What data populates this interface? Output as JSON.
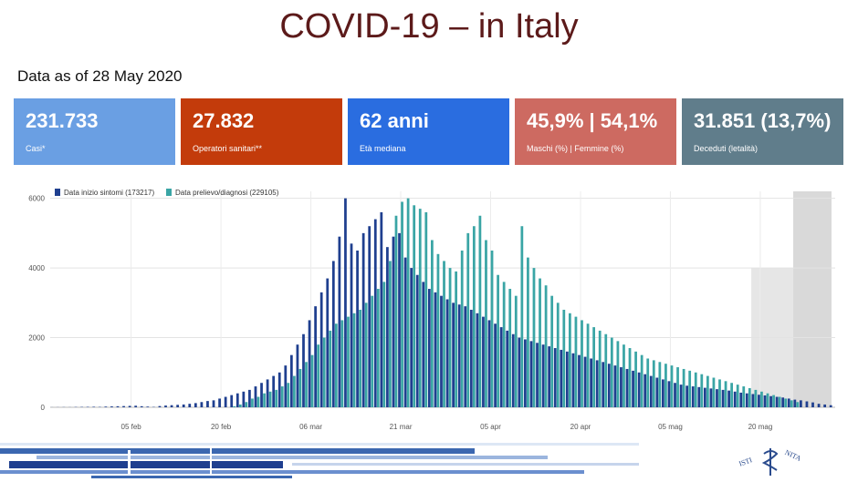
{
  "title": "COVID-19 – in Italy",
  "date_label": "Data as of 28 May 2020",
  "cards": [
    {
      "value": "231.733",
      "label": "Casi*",
      "color": "#6a9fe3"
    },
    {
      "value": "27.832",
      "label": "Operatori sanitari**",
      "color": "#c33b0b"
    },
    {
      "value": "62 anni",
      "label": "Età mediana",
      "color": "#2a6de0"
    },
    {
      "value": "45,9% | 54,1%",
      "label": "Maschi (%) | Femmine (%)",
      "color": "#cd6a61"
    },
    {
      "value": "31.851 (13,7%)",
      "label": "Deceduti (letalità)",
      "color": "#607d8b"
    }
  ],
  "logo_text": "ISTITUTO SUPERIORE DI SANITÀ",
  "chart_data": {
    "type": "bar",
    "title": "",
    "xlabel": "",
    "ylabel": "",
    "x_start": "2020-01-23",
    "x_end": "2020-05-28",
    "ylim": [
      0,
      6200
    ],
    "yticks": [
      0,
      2000,
      4000,
      6000
    ],
    "ytick_labels": [
      "0",
      "2000",
      "4000",
      "6000"
    ],
    "xtick_labels": [
      "05 feb",
      "20 feb",
      "06 mar",
      "21 mar",
      "05 apr",
      "20 apr",
      "05 mag",
      "20 mag"
    ],
    "xtick_day_index": [
      13,
      28,
      43,
      58,
      73,
      88,
      103,
      118
    ],
    "legend": [
      "Data inizio sintomi (173217)",
      "Data prelievo/diagnosi (229105)"
    ],
    "legend_position": "top-left",
    "shaded_recent_days": 14,
    "series": [
      {
        "name": "Data inizio sintomi (173217)",
        "color": "#1f3f8f",
        "values": [
          2,
          3,
          5,
          3,
          8,
          10,
          12,
          15,
          10,
          20,
          25,
          30,
          35,
          40,
          45,
          30,
          20,
          10,
          35,
          50,
          60,
          70,
          80,
          100,
          120,
          150,
          180,
          200,
          250,
          300,
          350,
          400,
          450,
          500,
          600,
          700,
          800,
          900,
          1000,
          1200,
          1500,
          1800,
          2100,
          2500,
          2900,
          3300,
          3700,
          4200,
          4900,
          6000,
          4700,
          4500,
          5000,
          5200,
          5400,
          5600,
          4600,
          4900,
          5000,
          4300,
          4000,
          3800,
          3600,
          3400,
          3300,
          3200,
          3100,
          3000,
          2950,
          2900,
          2800,
          2700,
          2600,
          2500,
          2400,
          2300,
          2200,
          2100,
          2000,
          1950,
          1900,
          1850,
          1800,
          1750,
          1700,
          1650,
          1600,
          1550,
          1500,
          1450,
          1400,
          1350,
          1300,
          1250,
          1200,
          1150,
          1100,
          1050,
          1000,
          950,
          900,
          850,
          800,
          750,
          700,
          650,
          620,
          600,
          580,
          560,
          540,
          520,
          500,
          480,
          450,
          420,
          400,
          380,
          360,
          340,
          320,
          300,
          280,
          250,
          220,
          200,
          170,
          140,
          100,
          80,
          60
        ]
      },
      {
        "name": "Data prelievo/diagnosi (229105)",
        "color": "#3aa5a5",
        "values": [
          0,
          0,
          0,
          0,
          0,
          0,
          0,
          0,
          0,
          0,
          0,
          0,
          0,
          0,
          0,
          0,
          0,
          0,
          0,
          0,
          0,
          0,
          0,
          0,
          0,
          0,
          0,
          0,
          0,
          0,
          30,
          80,
          150,
          250,
          300,
          400,
          450,
          500,
          600,
          700,
          900,
          1100,
          1300,
          1500,
          1800,
          2000,
          2200,
          2400,
          2500,
          2600,
          2700,
          2800,
          3000,
          3200,
          3400,
          3600,
          4200,
          5500,
          5900,
          6000,
          5800,
          5700,
          5600,
          4800,
          4400,
          4200,
          4000,
          3900,
          4500,
          5000,
          5200,
          5500,
          4800,
          4500,
          3800,
          3600,
          3400,
          3200,
          5200,
          4300,
          4000,
          3700,
          3500,
          3200,
          3000,
          2800,
          2700,
          2600,
          2500,
          2400,
          2300,
          2200,
          2100,
          2000,
          1900,
          1800,
          1700,
          1600,
          1500,
          1400,
          1350,
          1300,
          1250,
          1200,
          1150,
          1100,
          1050,
          1000,
          950,
          900,
          850,
          800,
          750,
          700,
          650,
          600,
          550,
          500,
          450,
          400,
          350,
          300,
          250,
          200,
          150
        ]
      }
    ]
  }
}
